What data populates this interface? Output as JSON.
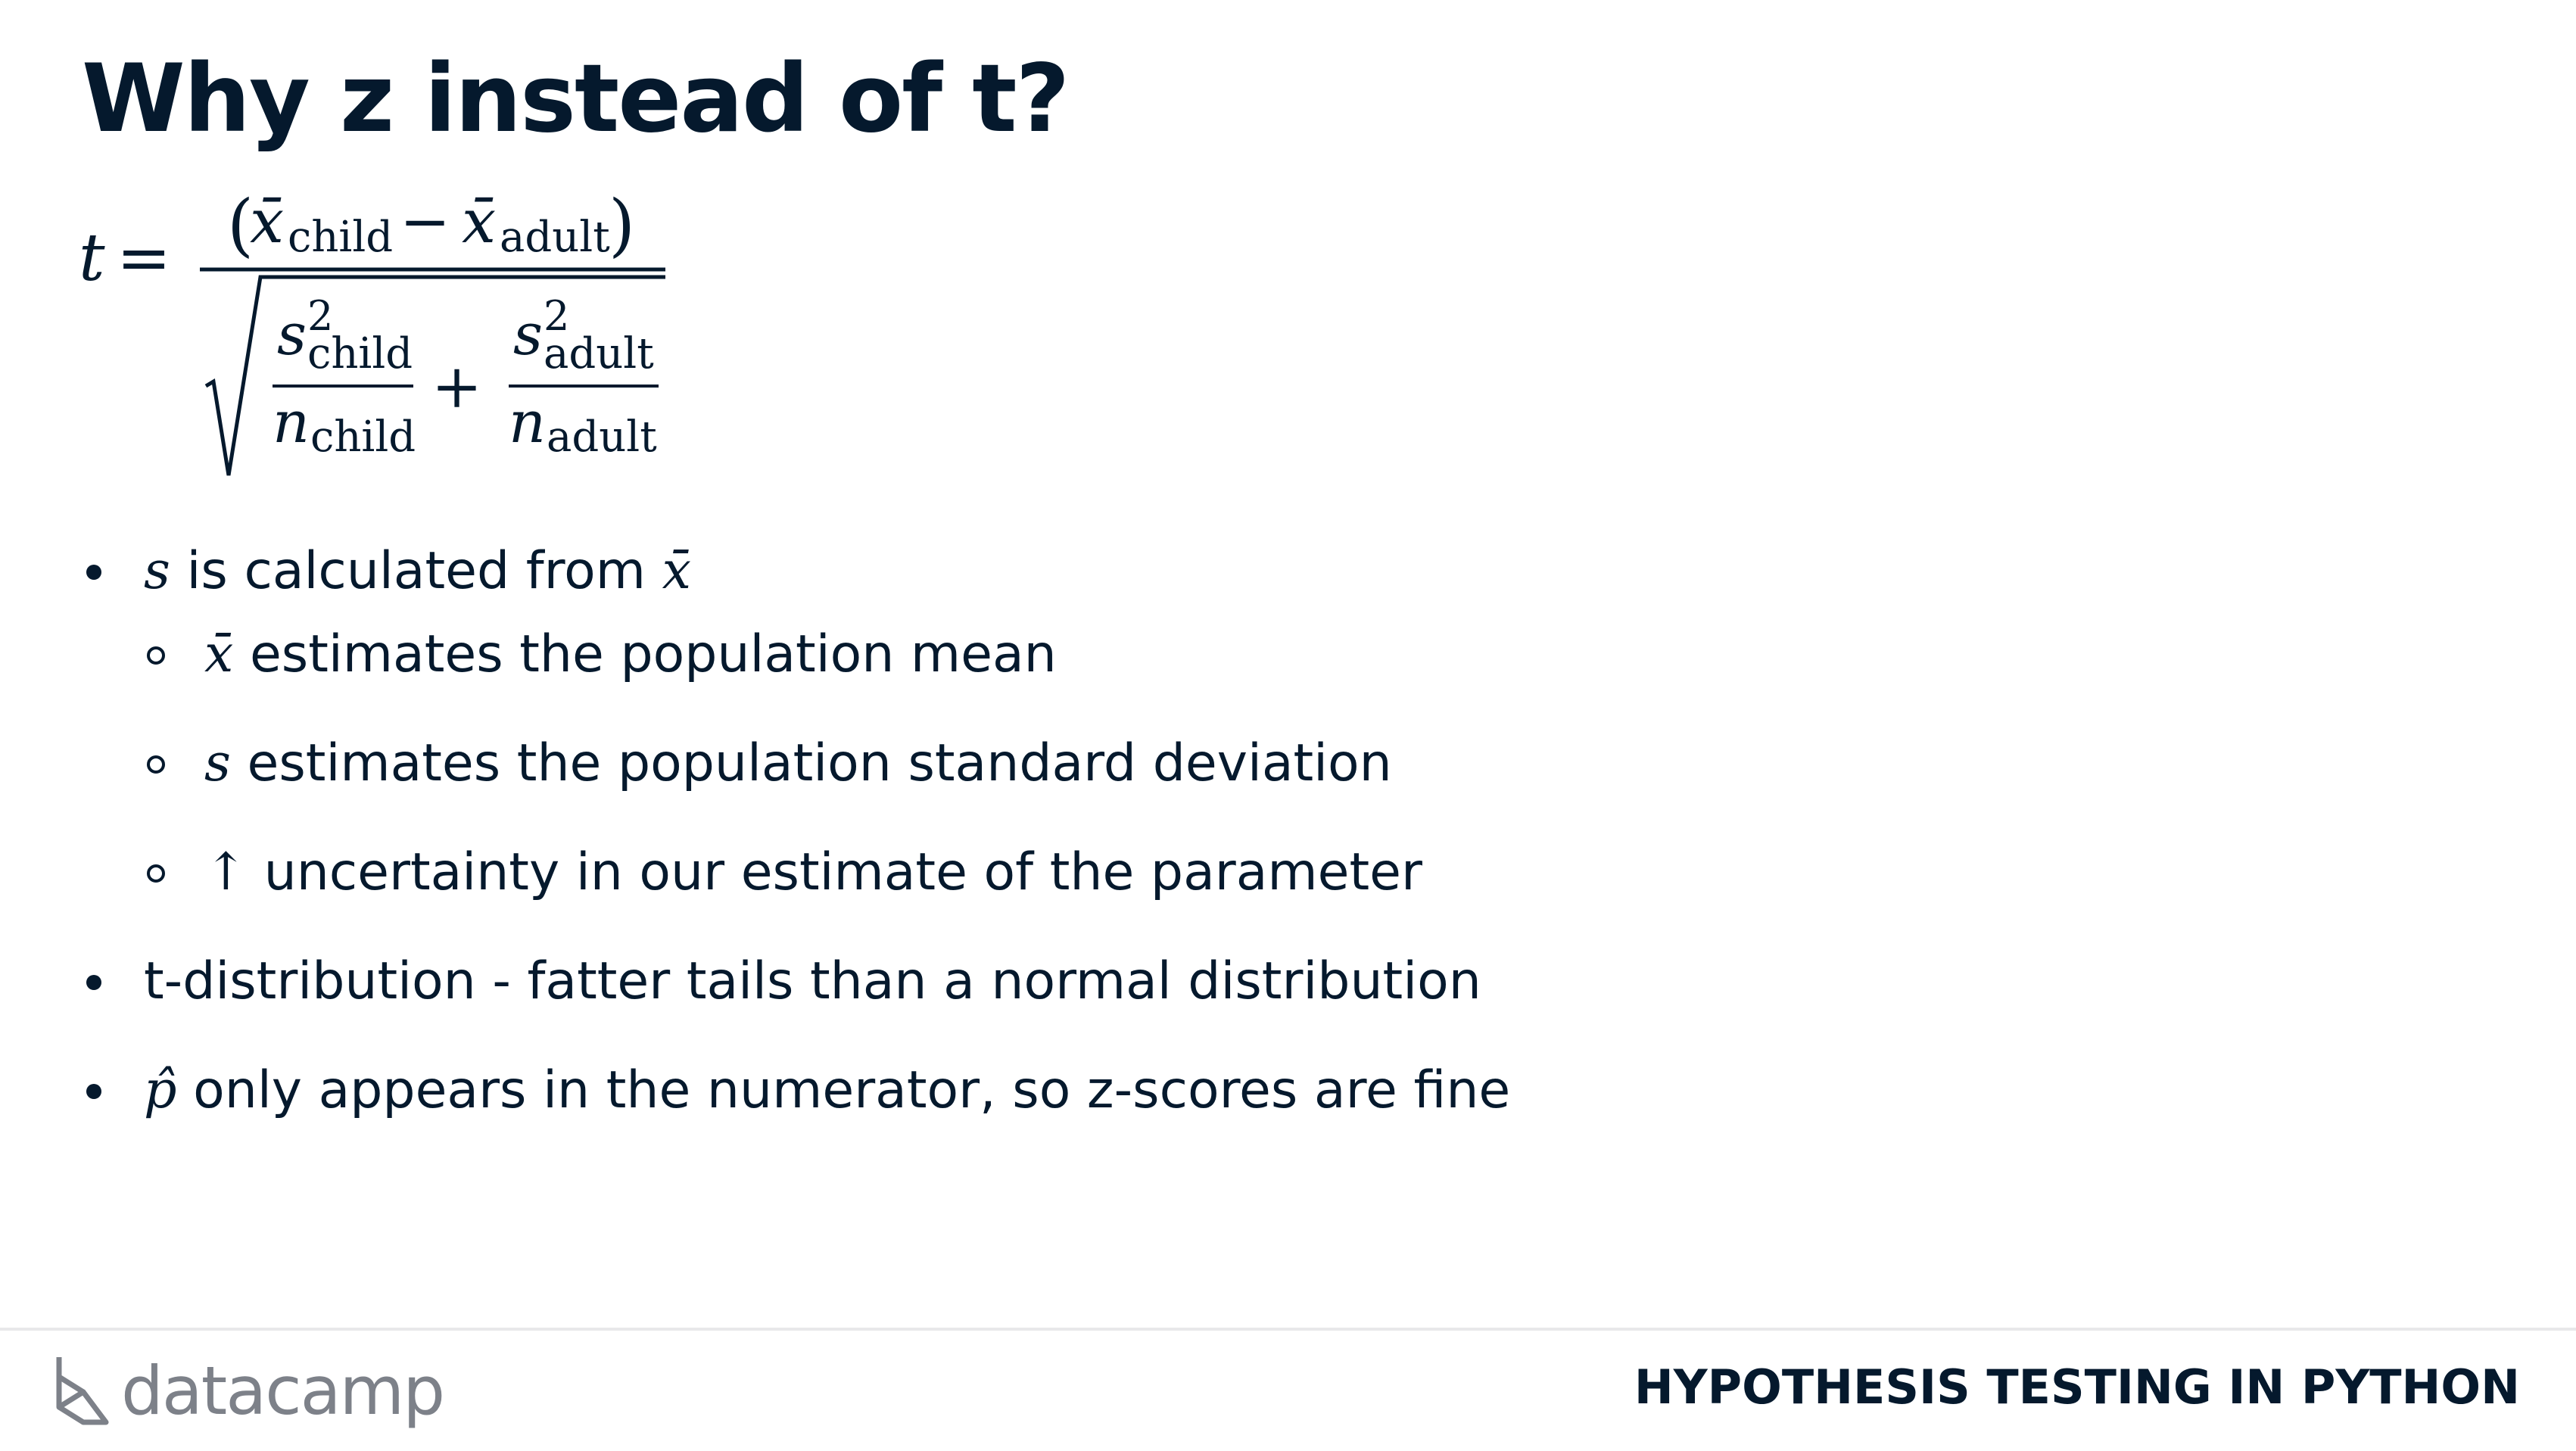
{
  "slide": {
    "title": "Why z instead of t?"
  },
  "formula": {
    "lhs": "t",
    "equals": "=",
    "x_bar": "x̄",
    "sub_child": "child",
    "sub_adult": "adult",
    "minus": "−",
    "plus": "+",
    "paren_open": "(",
    "paren_close": ")",
    "s": "s",
    "sq": "2",
    "n": "n"
  },
  "bullets": [
    {
      "symbol": "s",
      "text": " is calculated from ",
      "symbol_after": "x̄"
    },
    {
      "symbol": "x̄",
      "text": " estimates the population mean"
    },
    {
      "symbol": "s",
      "text": " estimates the population standard deviation"
    },
    {
      "symbol": "↑",
      "text": " uncertainty in our estimate of the parameter"
    },
    {
      "text": "t-distribution - fatter tails than a normal distribution"
    },
    {
      "symbol": "p̂",
      "text": " only appears in the numerator, so z-scores are fine"
    }
  ],
  "footer": {
    "logo_text": "datacamp",
    "logo_icon": "datacamp-logo-icon",
    "course_title": "HYPOTHESIS TESTING IN PYTHON"
  }
}
